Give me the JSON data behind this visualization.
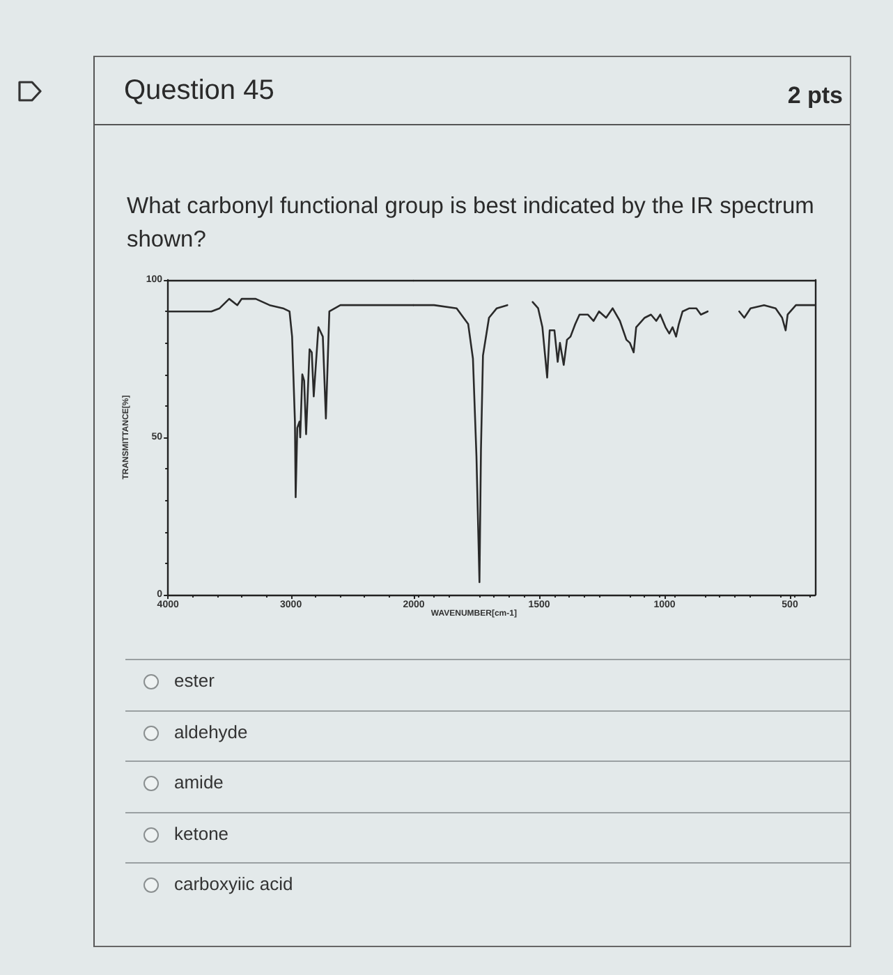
{
  "chart_data": [
    {
      "type": "line",
      "title": "Question 45",
      "subtitle": "What carbonyl functional group is best indicated by the IR spectrum shown?",
      "ylabel": "TRANSMITTANCE[%]",
      "annotations": [
        "2 pts",
        "ester",
        "aldehyde",
        "amide",
        "ketone",
        "carboxyiic acid"
      ],
      "x": [
        4000,
        3647,
        3580,
        3502,
        3436,
        3400,
        3286,
        3173,
        3064,
        3011,
        2990,
        2967,
        2961,
        2948,
        2930,
        2924,
        2907,
        2892,
        2876,
        2848,
        2830,
        2814,
        2776,
        2740,
        2715,
        2687,
        2597,
        2272,
        2044,
        2000
      ],
      "values": [
        90,
        90,
        91,
        94,
        92,
        94,
        94,
        92,
        91,
        90,
        82,
        55,
        31,
        53,
        55,
        50,
        70,
        68,
        51,
        78,
        77,
        63,
        85,
        82,
        56,
        90,
        92,
        92,
        92,
        92
      ],
      "color": "#2a2a2a",
      "xlim": [
        4000,
        2000
      ],
      "xticks": [
        4000,
        3000
      ],
      "ylim": [
        0,
        100
      ],
      "yticks": [
        0,
        50,
        100
      ],
      "marker": "none",
      "line_style": "solid"
    },
    {
      "type": "line",
      "xlabel": "WAVENUMBER[cm-1]",
      "x": [
        2000,
        1919,
        1829,
        1783,
        1764,
        1750,
        1738,
        1732,
        1724,
        1700,
        1669,
        1627,
        1575,
        1526,
        1504,
        1487,
        1468,
        1458,
        1439,
        1426,
        1417,
        1402,
        1389,
        1375,
        1356,
        1339,
        1306,
        1283,
        1261,
        1233,
        1207,
        1178,
        1152,
        1138,
        1123,
        1113,
        1079,
        1054,
        1033,
        1017,
        996,
        981,
        968,
        954,
        943,
        928,
        901,
        873,
        855,
        828,
        765,
        702,
        682,
        657,
        603,
        557,
        531,
        517,
        509,
        476,
        400
      ],
      "values": [
        92,
        92,
        91,
        86,
        75,
        44,
        4,
        46,
        76,
        88,
        91,
        92,
        null,
        93,
        91,
        85,
        69,
        84,
        84,
        74,
        80,
        73,
        81,
        82,
        86,
        89,
        89,
        87,
        90,
        88,
        91,
        87,
        81,
        80,
        77,
        85,
        88,
        89,
        87,
        89,
        85,
        83,
        85,
        82,
        86,
        90,
        91,
        91,
        89,
        90,
        null,
        90,
        88,
        91,
        92,
        91,
        88,
        84,
        89,
        92,
        92
      ],
      "color": "#2a2a2a",
      "xlim": [
        2000,
        400
      ],
      "xticks": [
        2000,
        1500,
        1000,
        500
      ],
      "ylim": [
        0,
        100
      ],
      "tick_labels": "x",
      "marker": "none",
      "line_style": "solid"
    }
  ]
}
